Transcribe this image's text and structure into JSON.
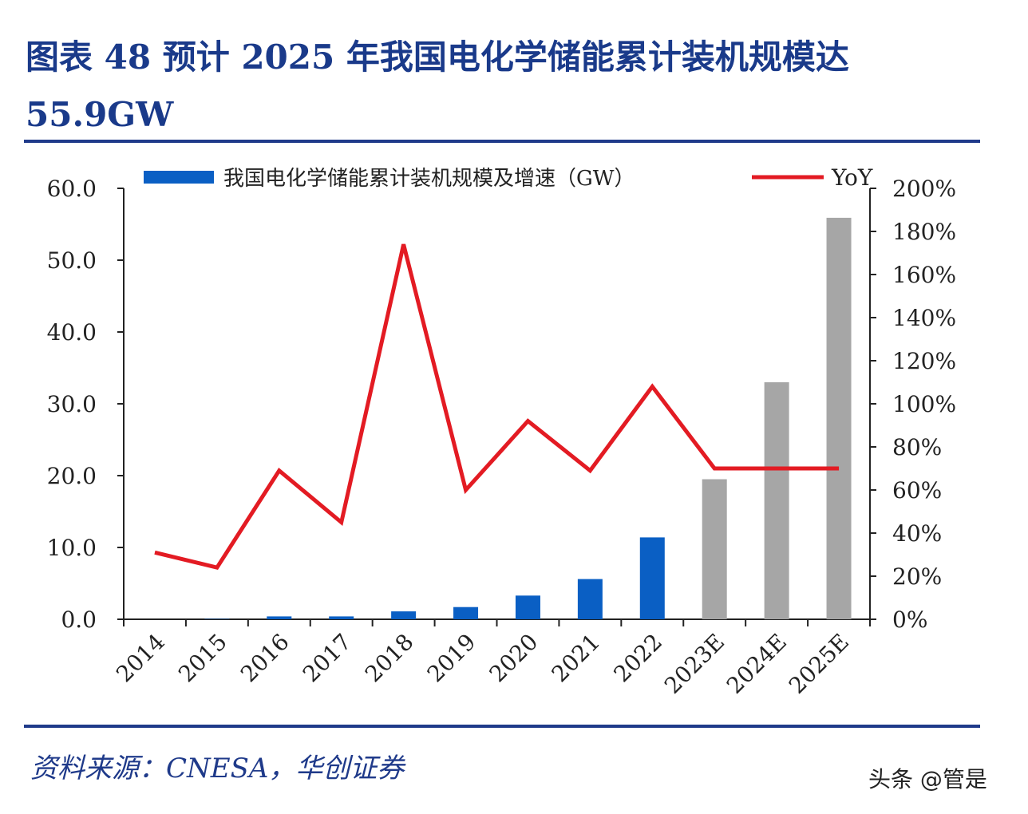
{
  "title": "图表  48    预计 2025 年我国电化学储能累计装机规模达 55.9GW",
  "source": "资料来源：CNESA，华创证券",
  "watermark": "头条 @管是",
  "chart_data": {
    "type": "bar+line",
    "categories": [
      "2014",
      "2015",
      "2016",
      "2017",
      "2018",
      "2019",
      "2020",
      "2021",
      "2022",
      "2023E",
      "2024E",
      "2025E"
    ],
    "series": [
      {
        "name": "我国电化学储能累计装机规模及增速（GW）",
        "type": "bar",
        "axis": "left",
        "values": [
          0.0,
          0.05,
          0.4,
          0.4,
          1.1,
          1.7,
          3.3,
          5.6,
          11.4,
          19.5,
          33.0,
          55.9
        ],
        "colors": [
          "#0a5fc4",
          "#0a5fc4",
          "#0a5fc4",
          "#0a5fc4",
          "#0a5fc4",
          "#0a5fc4",
          "#0a5fc4",
          "#0a5fc4",
          "#0a5fc4",
          "#a6a6a6",
          "#a6a6a6",
          "#a6a6a6"
        ]
      },
      {
        "name": "YoY",
        "type": "line",
        "axis": "right",
        "color": "#e31b23",
        "values": [
          31,
          24,
          69,
          45,
          174,
          60,
          92,
          69,
          108,
          70,
          70,
          70
        ]
      }
    ],
    "left_axis": {
      "ylim": [
        0,
        60
      ],
      "ticks": [
        "0.0",
        "10.0",
        "20.0",
        "30.0",
        "40.0",
        "50.0",
        "60.0"
      ]
    },
    "right_axis": {
      "ylim": [
        0,
        200
      ],
      "ticks": [
        "0%",
        "20%",
        "40%",
        "60%",
        "80%",
        "100%",
        "120%",
        "140%",
        "160%",
        "180%",
        "200%"
      ]
    },
    "legend": "top"
  }
}
